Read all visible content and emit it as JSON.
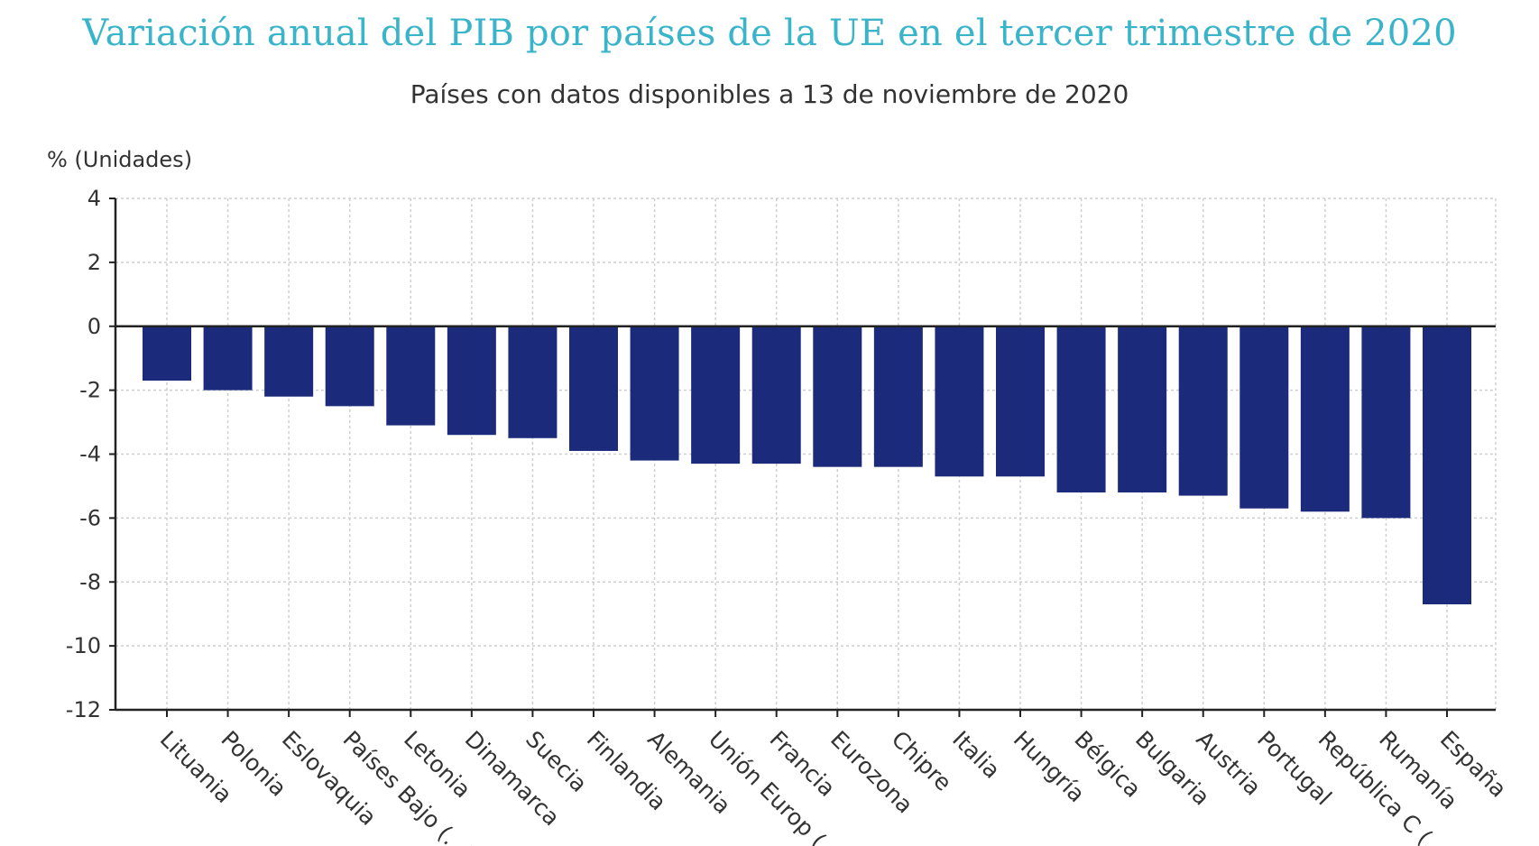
{
  "chart_data": {
    "type": "bar",
    "title": "Variación anual del PIB por países de la UE en el tercer trimestre de 2020",
    "subtitle": "Países con datos disponibles a 13 de noviembre de 2020",
    "ylabel": "% (Unidades)",
    "xlabel": "",
    "ylim": [
      -12,
      4
    ],
    "yticks": [
      4,
      2,
      0,
      -2,
      -4,
      -6,
      -8,
      -10,
      -12
    ],
    "grid": true,
    "bar_color": "#1b2a7a",
    "categories": [
      "Lituania",
      "Polonia",
      "Eslovaquia",
      "Países Bajo (...)",
      "Letonia",
      "Dinamarca",
      "Suecia",
      "Finlandia",
      "Alemania",
      "Unión Europ (...)",
      "Francia",
      "Eurozona",
      "Chipre",
      "Italia",
      "Hungría",
      "Bélgica",
      "Bulgaria",
      "Austria",
      "Portugal",
      "República C (...)",
      "Rumanía",
      "España"
    ],
    "values": [
      -1.7,
      -2.0,
      -2.2,
      -2.5,
      -3.1,
      -3.4,
      -3.5,
      -3.9,
      -4.2,
      -4.3,
      -4.3,
      -4.4,
      -4.4,
      -4.7,
      -4.7,
      -5.2,
      -5.2,
      -5.3,
      -5.7,
      -5.8,
      -6.0,
      -8.7
    ]
  }
}
